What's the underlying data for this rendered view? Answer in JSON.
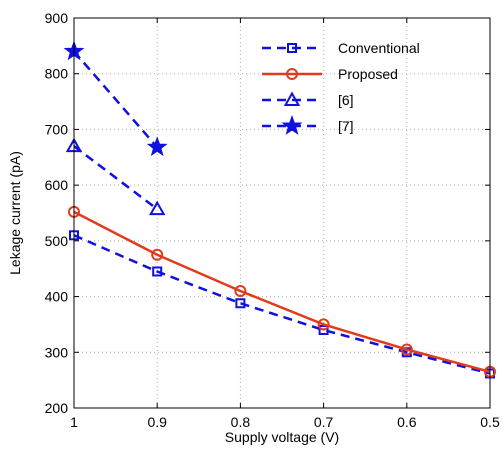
{
  "chart_data": {
    "type": "line",
    "xlabel": "Supply voltage (V)",
    "ylabel": "Lekage current (pA)",
    "x_ticks": [
      "1",
      "0.9",
      "0.8",
      "0.7",
      "0.6",
      "0.5"
    ],
    "y_ticks": [
      "200",
      "300",
      "400",
      "500",
      "600",
      "700",
      "800",
      "900"
    ],
    "xlim": [
      1.0,
      0.5
    ],
    "ylim": [
      200,
      900
    ],
    "x_reversed": true,
    "grid": true,
    "grid_style": "dotted",
    "legend_position": "top-right",
    "series": [
      {
        "name": "Conventional",
        "color": "#1010e0",
        "line_style": "dashed",
        "marker": "square",
        "x": [
          1.0,
          0.9,
          0.8,
          0.7,
          0.6,
          0.5
        ],
        "y": [
          510,
          445,
          388,
          340,
          300,
          262
        ]
      },
      {
        "name": "Proposed",
        "color": "#e23a1c",
        "line_style": "solid",
        "marker": "circle",
        "x": [
          1.0,
          0.9,
          0.8,
          0.7,
          0.6,
          0.5
        ],
        "y": [
          552,
          475,
          410,
          350,
          305,
          265
        ]
      },
      {
        "name": "[6]",
        "color": "#1010e0",
        "line_style": "dashed",
        "marker": "triangle",
        "x": [
          1.0,
          0.9
        ],
        "y": [
          670,
          557
        ]
      },
      {
        "name": "[7]",
        "color": "#1010e0",
        "line_style": "dashed",
        "marker": "star",
        "x": [
          1.0,
          0.9
        ],
        "y": [
          840,
          668
        ]
      }
    ]
  }
}
